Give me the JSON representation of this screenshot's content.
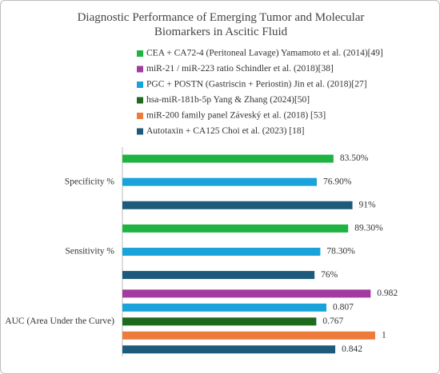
{
  "chart_data": {
    "type": "bar",
    "orientation": "horizontal",
    "title": "Diagnostic Performance of Emerging Tumor and Molecular Biomarkers in Ascitic Fluid",
    "categories": [
      "Specificity %",
      "Sensitivity %",
      "AUC (Area Under the Curve)"
    ],
    "xlim": [
      [
        0,
        100
      ],
      [
        0,
        100
      ],
      [
        0,
        1
      ]
    ],
    "series": [
      {
        "name": "CEA + CA72-4 (Peritoneal Lavage) Yamamoto et al. (2014)[49]",
        "color": "#1fb341",
        "values": [
          83.5,
          89.3,
          null
        ],
        "value_labels": [
          "83.50%",
          "89.30%",
          null
        ]
      },
      {
        "name": "miR-21 / miR-223 ratio Schindler et al. (2018)[38]",
        "color": "#a33a9f",
        "values": [
          null,
          null,
          0.982
        ],
        "value_labels": [
          null,
          null,
          "0.982"
        ]
      },
      {
        "name": "PGC + POSTN (Gastriscin + Periostin) Jin et al. (2018)[27]",
        "color": "#1aa3da",
        "values": [
          76.9,
          78.3,
          0.807
        ],
        "value_labels": [
          "76.90%",
          "78.30%",
          "0.807"
        ]
      },
      {
        "name": "hsa-miR-181b-5p Yang & Zhang (2024)[50]",
        "color": "#1d6a1f",
        "values": [
          null,
          null,
          0.767
        ],
        "value_labels": [
          null,
          null,
          "0.767"
        ]
      },
      {
        "name": "miR-200 family panel Záveský et al. (2018) [53]",
        "color": "#ed7b3b",
        "values": [
          null,
          null,
          1
        ],
        "value_labels": [
          null,
          null,
          "1"
        ]
      },
      {
        "name": "Autotaxin + CA125 Choi et al. (2023) [18]",
        "color": "#1e5a7b",
        "values": [
          91,
          76,
          0.842
        ],
        "value_labels": [
          "91%",
          "76%",
          "0.842"
        ]
      }
    ]
  }
}
